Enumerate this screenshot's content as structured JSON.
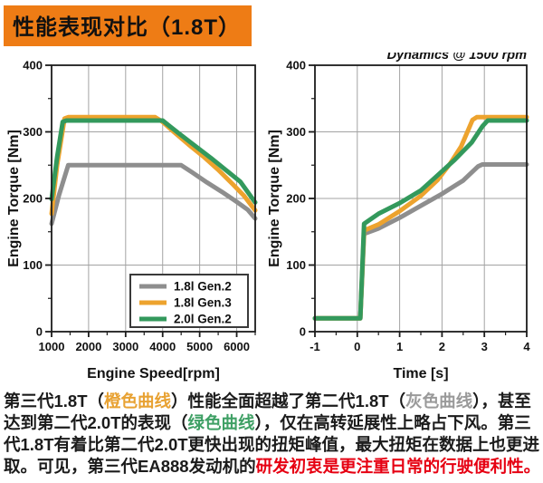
{
  "banner": {
    "title": "性能表现对比（1.8T）"
  },
  "colors": {
    "banner": "#ee7c15",
    "text": "#1b1b1b",
    "orange": "#e8a233",
    "gray": "#9a9a9a",
    "green": "#3fa065",
    "red": "#e60012",
    "grid": "#a3a3a3",
    "frame": "#1c1c1c"
  },
  "chart_data": [
    {
      "type": "line",
      "title": "",
      "xlabel": "Engine Speed[rpm]",
      "ylabel": "Engine Torque [Nm]",
      "xlim": [
        1000,
        6500
      ],
      "ylim": [
        0,
        400
      ],
      "xticks": [
        1000,
        2000,
        3000,
        4000,
        5000,
        6000
      ],
      "yticks": [
        0,
        100,
        200,
        300,
        400
      ],
      "xminor": 500,
      "yminor": 50,
      "grid": true,
      "legend": true,
      "legend_position": "lower right",
      "series": [
        {
          "name": "1.8l Gen.2",
          "color": "#8e8e8e",
          "points": [
            [
              1000,
              162
            ],
            [
              1200,
              205
            ],
            [
              1450,
              250
            ],
            [
              4500,
              250
            ],
            [
              4800,
              239
            ],
            [
              5200,
              224
            ],
            [
              5600,
              210
            ],
            [
              6000,
              195
            ],
            [
              6300,
              183
            ],
            [
              6500,
              170
            ]
          ]
        },
        {
          "name": "1.8l Gen.3",
          "color": "#eda32e",
          "points": [
            [
              1000,
              177
            ],
            [
              1150,
              250
            ],
            [
              1350,
              320
            ],
            [
              1450,
              322
            ],
            [
              3800,
              322
            ],
            [
              4000,
              315
            ],
            [
              4300,
              300
            ],
            [
              4700,
              281
            ],
            [
              5100,
              263
            ],
            [
              5500,
              243
            ],
            [
              5900,
              221
            ],
            [
              6200,
              204
            ],
            [
              6500,
              182
            ]
          ]
        },
        {
          "name": "2.0l Gen.2",
          "color": "#33995c",
          "points": [
            [
              1000,
              199
            ],
            [
              1150,
              262
            ],
            [
              1300,
              315
            ],
            [
              1400,
              317
            ],
            [
              4000,
              317
            ],
            [
              4200,
              308
            ],
            [
              4500,
              295
            ],
            [
              4900,
              278
            ],
            [
              5300,
              261
            ],
            [
              5700,
              243
            ],
            [
              6100,
              225
            ],
            [
              6500,
              194
            ]
          ]
        }
      ]
    },
    {
      "type": "line",
      "title": "Dynamics @ 1500 rpm",
      "xlabel": "Time [s]",
      "ylabel": "Engine Torque [Nm]",
      "xlim": [
        -1,
        4
      ],
      "ylim": [
        0,
        400
      ],
      "xticks": [
        -1,
        0,
        1,
        2,
        3,
        4
      ],
      "yticks": [
        0,
        100,
        200,
        300,
        400
      ],
      "xminor": 0.5,
      "yminor": 50,
      "grid": true,
      "legend": false,
      "series": [
        {
          "name": "1.8l Gen.2",
          "color": "#8e8e8e",
          "points": [
            [
              -1,
              20
            ],
            [
              0.07,
              20
            ],
            [
              0.16,
              147
            ],
            [
              0.5,
              155
            ],
            [
              1,
              171
            ],
            [
              1.5,
              189
            ],
            [
              2,
              207
            ],
            [
              2.5,
              227
            ],
            [
              2.85,
              248
            ],
            [
              2.95,
              251
            ],
            [
              4,
              251
            ]
          ]
        },
        {
          "name": "1.8l Gen.3",
          "color": "#eda32e",
          "points": [
            [
              -1,
              20
            ],
            [
              0.07,
              20
            ],
            [
              0.16,
              152
            ],
            [
              0.5,
              161
            ],
            [
              1,
              181
            ],
            [
              1.5,
              204
            ],
            [
              1.9,
              228
            ],
            [
              2.2,
              253
            ],
            [
              2.45,
              278
            ],
            [
              2.6,
              300
            ],
            [
              2.72,
              318
            ],
            [
              2.82,
              322
            ],
            [
              4,
              322
            ]
          ]
        },
        {
          "name": "2.0l Gen.2",
          "color": "#33995c",
          "points": [
            [
              -1,
              20
            ],
            [
              0.07,
              20
            ],
            [
              0.16,
              162
            ],
            [
              0.5,
              177
            ],
            [
              1,
              193
            ],
            [
              1.5,
              212
            ],
            [
              1.9,
              235
            ],
            [
              2.3,
              258
            ],
            [
              2.7,
              284
            ],
            [
              2.95,
              308
            ],
            [
              3.08,
              317
            ],
            [
              4,
              317
            ]
          ]
        }
      ]
    }
  ],
  "caption": {
    "lines": [
      [
        {
          "t": "第三代1.8T（",
          "c": "text"
        },
        {
          "t": "橙色曲线",
          "c": "orange"
        },
        {
          "t": "）性能全面超越了第二代1.8T（",
          "c": "text"
        },
        {
          "t": "灰色曲线",
          "c": "gray"
        },
        {
          "t": "），甚至",
          "c": "text"
        }
      ],
      [
        {
          "t": "达到第二代2.0T的表现（",
          "c": "text"
        },
        {
          "t": "绿色曲线",
          "c": "green"
        },
        {
          "t": "），仅在高转延展性上略占下风。第三",
          "c": "text"
        }
      ],
      [
        {
          "t": "代1.8T有着比第二代2.0T更快出现的扭矩峰值，最大扭矩在数据上也更进",
          "c": "text"
        }
      ],
      [
        {
          "t": "取。可见，第三代EA888发动机的",
          "c": "text"
        },
        {
          "t": "研发初衷是更注重日常的行驶便利性。",
          "c": "red"
        }
      ]
    ]
  }
}
